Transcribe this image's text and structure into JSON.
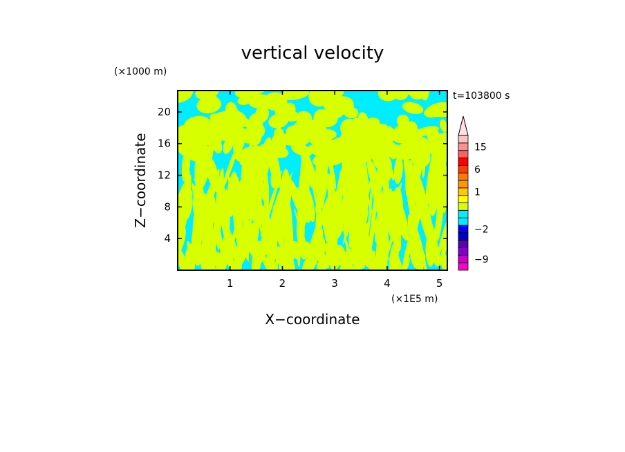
{
  "chart_data": {
    "type": "heatmap",
    "title": "vertical velocity",
    "xlabel": "X−coordinate",
    "ylabel": "Z−coordinate",
    "x_unit": "(×1E5 m)",
    "y_unit": "(×1000 m)",
    "time_label": "t=103800 s",
    "xlim": [
      0,
      5.15
    ],
    "ylim": [
      0,
      22.7
    ],
    "x_ticks": [
      1,
      2,
      3,
      4,
      5
    ],
    "y_ticks": [
      4,
      8,
      12,
      16,
      20
    ],
    "field_colors": {
      "negative": "#00ecff",
      "positive": "#d8ff00"
    },
    "colorbar": {
      "extend": "max",
      "levels": [
        -10,
        -9,
        -7,
        -5,
        -3,
        -2,
        -1,
        -0.5,
        0,
        0.5,
        1,
        2,
        4,
        6,
        8,
        10,
        15,
        20,
        25
      ],
      "colors": [
        "#ff00c8",
        "#c800c8",
        "#8200c8",
        "#5a00b4",
        "#0000c8",
        "#0000ff",
        "#00ecff",
        "#00ecff",
        "#d8ff00",
        "#ffff00",
        "#ffc800",
        "#ff9600",
        "#ff7800",
        "#ff3c00",
        "#ff0000",
        "#ff6060",
        "#ff9090",
        "#ffc0c0"
      ],
      "tick_labels": [
        {
          "value": -9,
          "label": "−9"
        },
        {
          "value": -2,
          "label": "−2"
        },
        {
          "value": 1,
          "label": "1"
        },
        {
          "value": 6,
          "label": "6"
        },
        {
          "value": 15,
          "label": "15"
        }
      ]
    }
  }
}
